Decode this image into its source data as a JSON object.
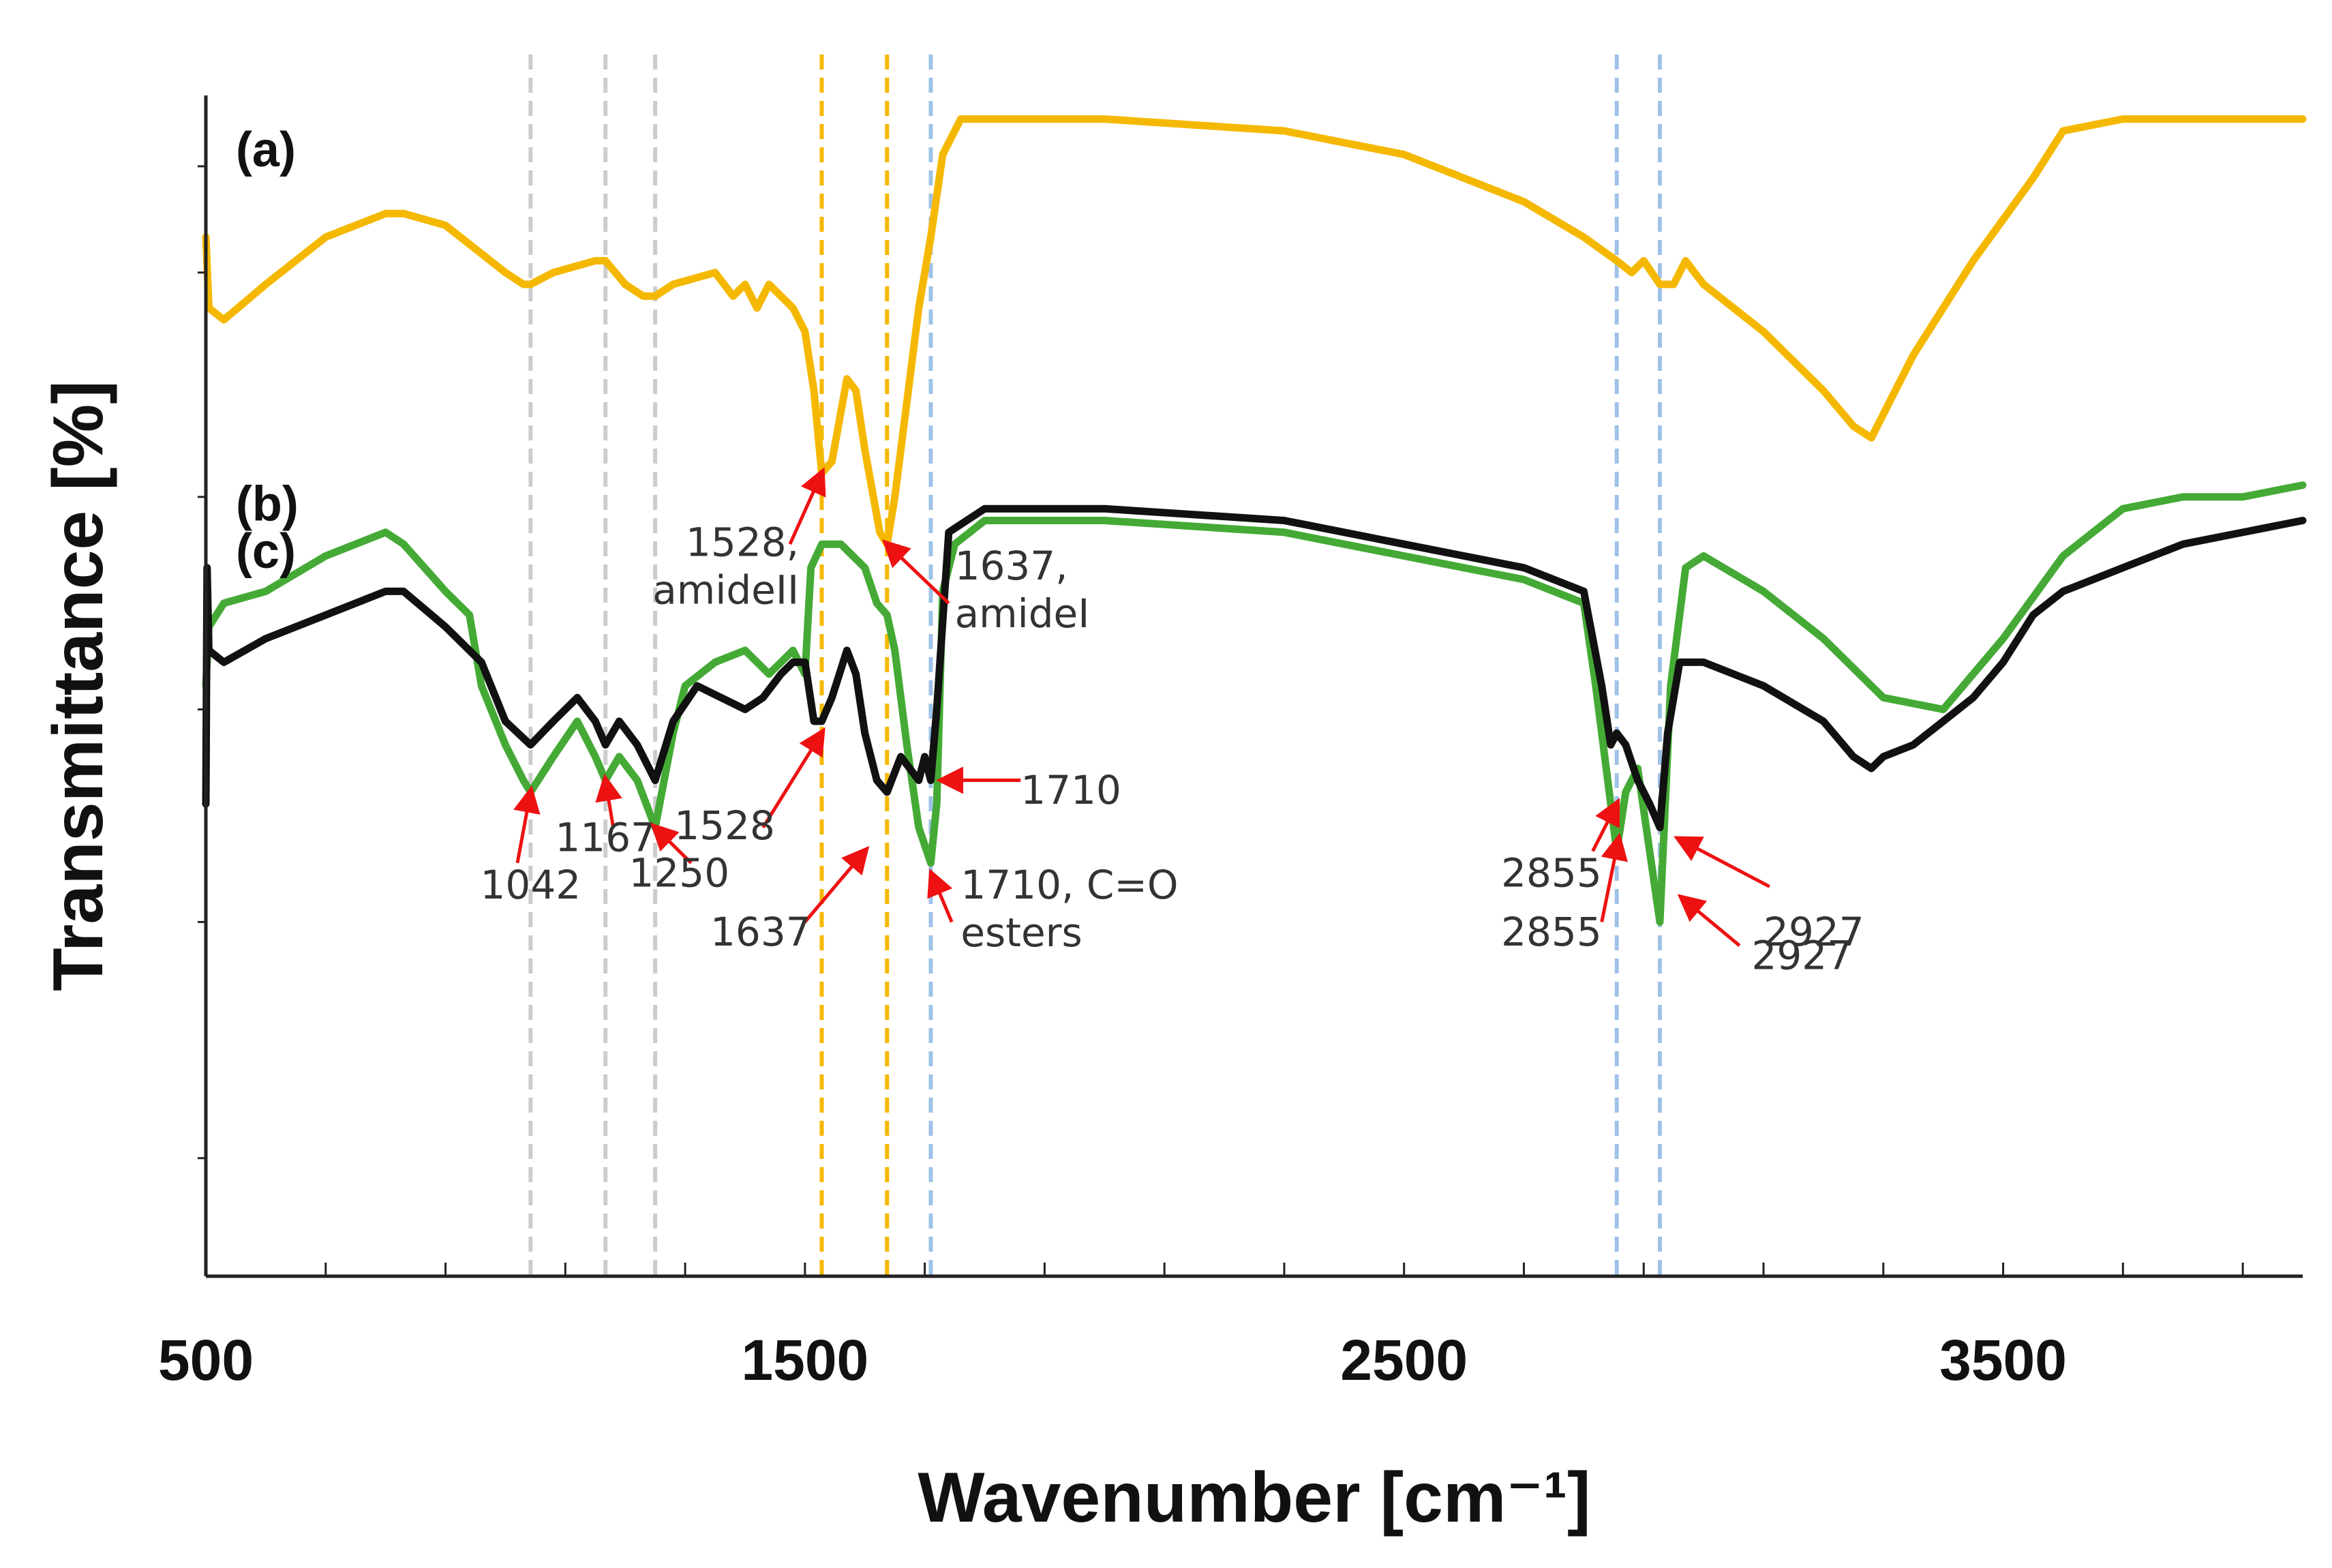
{
  "chart_data": {
    "type": "line",
    "title": "",
    "xlabel": "Wavenumber [cm⁻¹]",
    "ylabel": "Transmittance [%]",
    "xlim": [
      500,
      4000
    ],
    "ylim": [
      0,
      100
    ],
    "x_ticks_major": [
      500,
      1500,
      2500,
      3500
    ],
    "x_tick_labels": [
      "500",
      "1500",
      "2500",
      "3500"
    ],
    "grid": false,
    "y_tick_values": [
      10,
      30,
      48,
      66,
      85,
      94
    ],
    "vertical_guides": [
      {
        "x": 1042,
        "color": "#cccccc"
      },
      {
        "x": 1167,
        "color": "#cccccc"
      },
      {
        "x": 1250,
        "color": "#cccccc"
      },
      {
        "x": 1528,
        "color": "#f5b800"
      },
      {
        "x": 1637,
        "color": "#f5b800"
      },
      {
        "x": 1710,
        "color": "#9fc2e8"
      },
      {
        "x": 2855,
        "color": "#9fc2e8"
      },
      {
        "x": 2927,
        "color": "#9fc2e8"
      }
    ],
    "series": [
      {
        "name": "(a)",
        "label": "(a)",
        "color": "#f5b800",
        "x": [
          500,
          505,
          530,
          600,
          700,
          800,
          830,
          900,
          1000,
          1030,
          1042,
          1080,
          1150,
          1167,
          1200,
          1230,
          1250,
          1280,
          1350,
          1380,
          1400,
          1420,
          1440,
          1460,
          1480,
          1500,
          1515,
          1528,
          1545,
          1570,
          1585,
          1600,
          1625,
          1637,
          1650,
          1670,
          1690,
          1710,
          1730,
          1760,
          1800,
          2000,
          2300,
          2500,
          2700,
          2800,
          2855,
          2880,
          2900,
          2927,
          2950,
          2970,
          3000,
          3100,
          3200,
          3250,
          3280,
          3300,
          3350,
          3450,
          3550,
          3600,
          3700,
          3800,
          4000
        ],
        "y": [
          88,
          82,
          81,
          84,
          88,
          90,
          90,
          89,
          85,
          84,
          84,
          85,
          86,
          86,
          84,
          83,
          83,
          84,
          85,
          83,
          84,
          82,
          84,
          83,
          82,
          80,
          75,
          68,
          69,
          76,
          75,
          70,
          63,
          62,
          66,
          74,
          82,
          88,
          95,
          98,
          98,
          98,
          97,
          95,
          91,
          88,
          86,
          85,
          86,
          84,
          84,
          86,
          84,
          80,
          75,
          72,
          71,
          73,
          78,
          86,
          93,
          97,
          98,
          98,
          98
        ]
      },
      {
        "name": "(b)",
        "label": "(b)",
        "color": "#44aa35",
        "x": [
          500,
          505,
          530,
          600,
          700,
          800,
          830,
          900,
          940,
          960,
          1000,
          1030,
          1042,
          1080,
          1120,
          1150,
          1167,
          1190,
          1220,
          1250,
          1280,
          1300,
          1350,
          1400,
          1440,
          1460,
          1480,
          1500,
          1510,
          1528,
          1560,
          1600,
          1620,
          1637,
          1650,
          1670,
          1690,
          1710,
          1720,
          1730,
          1750,
          1800,
          2000,
          2300,
          2500,
          2700,
          2800,
          2820,
          2840,
          2855,
          2870,
          2890,
          2910,
          2927,
          2945,
          2970,
          3000,
          3100,
          3200,
          3300,
          3400,
          3500,
          3600,
          3650,
          3700,
          3800,
          3900,
          4000
        ],
        "y": [
          50,
          55,
          57,
          58,
          61,
          63,
          62,
          58,
          56,
          50,
          45,
          42,
          41,
          44,
          47,
          44,
          42,
          44,
          42,
          38,
          46,
          50,
          52,
          53,
          51,
          52,
          53,
          51,
          60,
          62,
          62,
          60,
          57,
          56,
          53,
          45,
          38,
          35,
          40,
          58,
          62,
          64,
          64,
          63,
          61,
          59,
          57,
          50,
          42,
          36,
          41,
          43,
          36,
          30,
          50,
          60,
          61,
          58,
          54,
          49,
          48,
          54,
          61,
          63,
          65,
          66,
          66,
          67
        ]
      },
      {
        "name": "(c)",
        "label": "(c)",
        "color": "#111111",
        "x": [
          500,
          502,
          505,
          530,
          600,
          700,
          800,
          830,
          900,
          960,
          1000,
          1042,
          1080,
          1120,
          1150,
          1167,
          1190,
          1220,
          1250,
          1280,
          1320,
          1360,
          1400,
          1430,
          1460,
          1480,
          1500,
          1515,
          1528,
          1545,
          1570,
          1585,
          1600,
          1620,
          1637,
          1660,
          1690,
          1700,
          1710,
          1720,
          1740,
          1800,
          2000,
          2300,
          2500,
          2700,
          2800,
          2830,
          2845,
          2855,
          2870,
          2890,
          2910,
          2927,
          2940,
          2960,
          3000,
          3100,
          3200,
          3250,
          3280,
          3300,
          3350,
          3400,
          3450,
          3500,
          3550,
          3600,
          3700,
          3800,
          4000
        ],
        "y": [
          40,
          60,
          53,
          52,
          54,
          56,
          58,
          58,
          55,
          52,
          47,
          45,
          47,
          49,
          47,
          45,
          47,
          45,
          42,
          47,
          50,
          49,
          48,
          49,
          51,
          52,
          52,
          47,
          47,
          49,
          53,
          51,
          46,
          42,
          41,
          44,
          42,
          44,
          42,
          48,
          63,
          65,
          65,
          64,
          62,
          60,
          58,
          50,
          45,
          46,
          45,
          42,
          40,
          38,
          46,
          52,
          52,
          50,
          47,
          44,
          43,
          44,
          45,
          47,
          49,
          52,
          56,
          58,
          60,
          62,
          64
        ]
      }
    ],
    "panel_labels": [
      {
        "text": "(a)",
        "x": 550,
        "y": 94
      },
      {
        "text": "(b)",
        "x": 550,
        "y": 64
      },
      {
        "text": "(c)",
        "x": 550,
        "y": 60
      }
    ],
    "annotations": [
      {
        "id": "a1528",
        "lines": [
          "1528,",
          "amideⅠⅠ"
        ],
        "align": "end",
        "text_x": 1490,
        "text_y": 61,
        "arrow_from": [
          1475,
          62
        ],
        "arrow_to": [
          1528,
          68
        ]
      },
      {
        "id": "a1637",
        "lines": [
          "1637,",
          "amideⅠ"
        ],
        "align": "start",
        "text_x": 1750,
        "text_y": 59,
        "arrow_from": [
          1740,
          57
        ],
        "arrow_to": [
          1637,
          62
        ]
      },
      {
        "id": "b1042",
        "lines": [
          "1042"
        ],
        "align": "middle",
        "text_x": 1042,
        "text_y": 32,
        "arrow_from": [
          1020,
          35
        ],
        "arrow_to": [
          1042,
          41
        ]
      },
      {
        "id": "b1167",
        "lines": [
          "1167"
        ],
        "align": "middle",
        "text_x": 1167,
        "text_y": 36,
        "arrow_from": [
          1180,
          38
        ],
        "arrow_to": [
          1167,
          42
        ]
      },
      {
        "id": "b1250",
        "lines": [
          "1250"
        ],
        "align": "middle",
        "text_x": 1290,
        "text_y": 33,
        "arrow_from": [
          1310,
          35
        ],
        "arrow_to": [
          1250,
          38
        ]
      },
      {
        "id": "b1710",
        "lines": [
          "1710, C=O",
          "esters"
        ],
        "align": "start",
        "text_x": 1760,
        "text_y": 32,
        "arrow_from": [
          1745,
          30
        ],
        "arrow_to": [
          1712,
          34
        ]
      },
      {
        "id": "b2855",
        "lines": [
          "2855"
        ],
        "align": "end",
        "text_x": 2830,
        "text_y": 33,
        "arrow_from": [
          2815,
          36
        ],
        "arrow_to": [
          2855,
          40
        ]
      },
      {
        "id": "b2927",
        "lines": [
          "2927"
        ],
        "align": "start",
        "text_x": 3080,
        "text_y": 26,
        "arrow_from": [
          3060,
          28
        ],
        "arrow_to": [
          2965,
          32
        ]
      },
      {
        "id": "c1528",
        "lines": [
          "1528"
        ],
        "align": "end",
        "text_x": 1450,
        "text_y": 37,
        "arrow_from": [
          1430,
          38
        ],
        "arrow_to": [
          1528,
          46
        ]
      },
      {
        "id": "c1637",
        "lines": [
          "1637"
        ],
        "align": "end",
        "text_x": 1510,
        "text_y": 28,
        "arrow_from": [
          1500,
          30
        ],
        "arrow_to": [
          1600,
          36
        ]
      },
      {
        "id": "c1710",
        "lines": [
          "1710"
        ],
        "align": "start",
        "text_x": 1860,
        "text_y": 40,
        "arrow_from": [
          1860,
          42
        ],
        "arrow_to": [
          1730,
          42
        ]
      },
      {
        "id": "c2855",
        "lines": [
          "2855"
        ],
        "align": "end",
        "text_x": 2830,
        "text_y": 28,
        "arrow_from": [
          2830,
          30
        ],
        "arrow_to": [
          2858,
          37
        ]
      },
      {
        "id": "c2927",
        "lines": [
          "2927"
        ],
        "align": "start",
        "text_x": 3100,
        "text_y": 28,
        "arrow_from": [
          3110,
          33
        ],
        "arrow_to": [
          2960,
          37
        ]
      }
    ]
  }
}
